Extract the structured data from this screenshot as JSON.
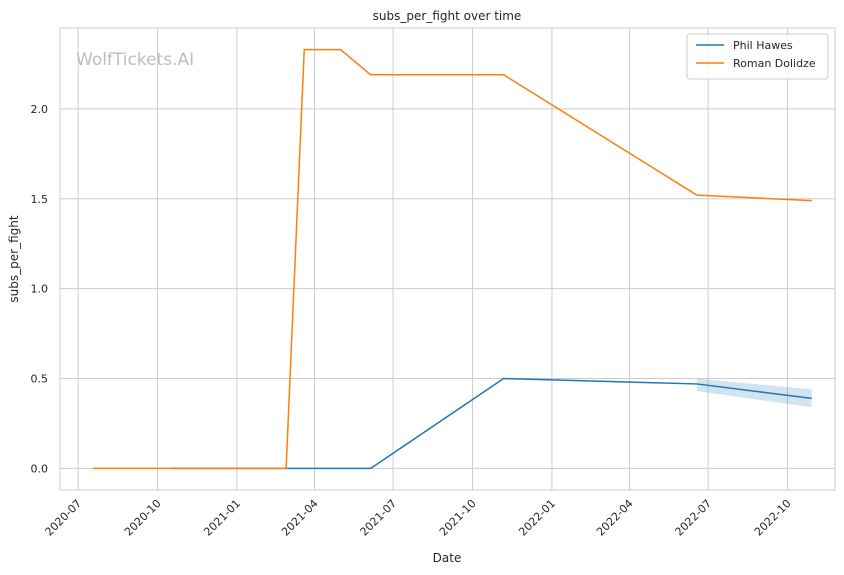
{
  "chart_data": {
    "type": "line",
    "title": "subs_per_fight over time",
    "xlabel": "Date",
    "ylabel": "subs_per_fight",
    "watermark": "WolfTickets.AI",
    "xlim": [
      "2020-06-10",
      "2022-11-25"
    ],
    "ylim": [
      -0.12,
      2.45
    ],
    "x_ticks": [
      "2020-07-01",
      "2020-10-01",
      "2021-01-01",
      "2021-04-01",
      "2021-07-01",
      "2021-10-01",
      "2022-01-01",
      "2022-04-01",
      "2022-07-01",
      "2022-10-01"
    ],
    "x_tick_labels": [
      "2020-07",
      "2020-10",
      "2021-01",
      "2021-04",
      "2021-07",
      "2021-10",
      "2022-01",
      "2022-04",
      "2022-07",
      "2022-10"
    ],
    "y_ticks": [
      0.0,
      0.5,
      1.0,
      1.5,
      2.0
    ],
    "y_tick_labels": [
      "0.0",
      "0.5",
      "1.0",
      "1.5",
      "2.0"
    ],
    "grid": true,
    "legend_position": "top-right",
    "series": [
      {
        "name": "Phil Hawes",
        "color": "#1f77b4",
        "x": [
          "2020-10-17",
          "2021-02-27",
          "2021-06-05",
          "2021-11-06",
          "2022-06-18",
          "2022-10-29"
        ],
        "y": [
          0.0,
          0.0,
          0.0,
          0.5,
          0.47,
          0.39
        ],
        "ci": {
          "x": [
            "2022-06-18",
            "2022-10-29"
          ],
          "lower": [
            0.43,
            0.34
          ],
          "upper": [
            0.5,
            0.44
          ]
        }
      },
      {
        "name": "Roman Dolidze",
        "color": "#ff7f0e",
        "x": [
          "2020-07-18",
          "2021-02-27",
          "2021-03-20",
          "2021-05-01",
          "2021-06-05",
          "2021-11-06",
          "2022-06-18",
          "2022-10-29"
        ],
        "y": [
          0.0,
          0.0,
          2.33,
          2.33,
          2.19,
          2.19,
          1.52,
          1.49
        ]
      }
    ]
  }
}
